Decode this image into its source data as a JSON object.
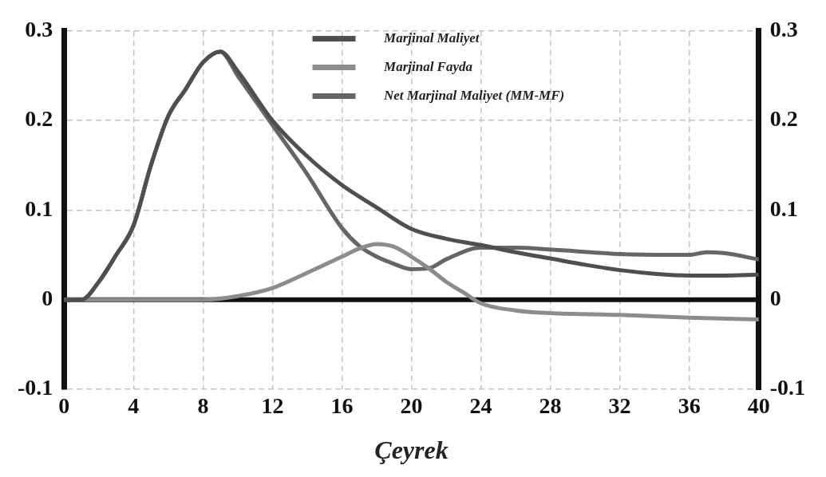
{
  "chart_data": {
    "type": "line",
    "xlabel": "Çeyrek",
    "xlim": [
      0,
      40
    ],
    "xticks": [
      0,
      4,
      8,
      12,
      16,
      20,
      24,
      28,
      32,
      36,
      40
    ],
    "ylim": [
      -0.1,
      0.3
    ],
    "yticks": [
      -0.1,
      0,
      0.1,
      0.2,
      0.3
    ],
    "y2lim": [
      -0.1,
      0.3
    ],
    "y2ticks": [
      -0.1,
      0,
      0.1,
      0.2,
      0.3
    ],
    "grid": true,
    "legend": "top",
    "marker": "none",
    "line_style": "solid",
    "ref_lines": [
      {
        "axis": "y",
        "value": 0,
        "color": "#111111"
      }
    ],
    "series": [
      {
        "name": "Marjinal Maliyet",
        "color": "#4f4f4f",
        "x": [
          0,
          1,
          2,
          3,
          4,
          5,
          6,
          7,
          8,
          9,
          10,
          12,
          14,
          16,
          18,
          20,
          22,
          24,
          26,
          28,
          30,
          32,
          34,
          36,
          38,
          40
        ],
        "values": [
          0,
          0,
          0.02,
          0.05,
          0.083,
          0.15,
          0.205,
          0.235,
          0.265,
          0.277,
          0.255,
          0.2,
          0.16,
          0.128,
          0.103,
          0.079,
          0.068,
          0.061,
          0.053,
          0.046,
          0.039,
          0.033,
          0.029,
          0.027,
          0.027,
          0.028
        ]
      },
      {
        "name": "Marjinal Fayda",
        "color": "#8c8c8c",
        "x": [
          0,
          2,
          4,
          6,
          8,
          10,
          12,
          14,
          16,
          17,
          18,
          19,
          20,
          21,
          22,
          23,
          24,
          26,
          28,
          32,
          36,
          40
        ],
        "values": [
          0,
          0,
          0,
          0,
          0,
          0.004,
          0.013,
          0.03,
          0.048,
          0.057,
          0.062,
          0.059,
          0.048,
          0.035,
          0.02,
          0.008,
          -0.004,
          -0.012,
          -0.015,
          -0.017,
          -0.02,
          -0.022
        ]
      },
      {
        "name": "Net Marjinal Maliyet (MM-MF)",
        "color": "#666666",
        "x": [
          0,
          1,
          2,
          3,
          4,
          5,
          6,
          7,
          8,
          9,
          10,
          12,
          14,
          16,
          17,
          18,
          19,
          20,
          21,
          22,
          24,
          26,
          28,
          32,
          35,
          36,
          37,
          38,
          40
        ],
        "values": [
          0,
          0,
          0.02,
          0.05,
          0.083,
          0.15,
          0.205,
          0.235,
          0.265,
          0.277,
          0.25,
          0.195,
          0.14,
          0.08,
          0.06,
          0.048,
          0.04,
          0.034,
          0.035,
          0.045,
          0.058,
          0.058,
          0.056,
          0.051,
          0.05,
          0.05,
          0.053,
          0.052,
          0.045
        ]
      }
    ]
  }
}
